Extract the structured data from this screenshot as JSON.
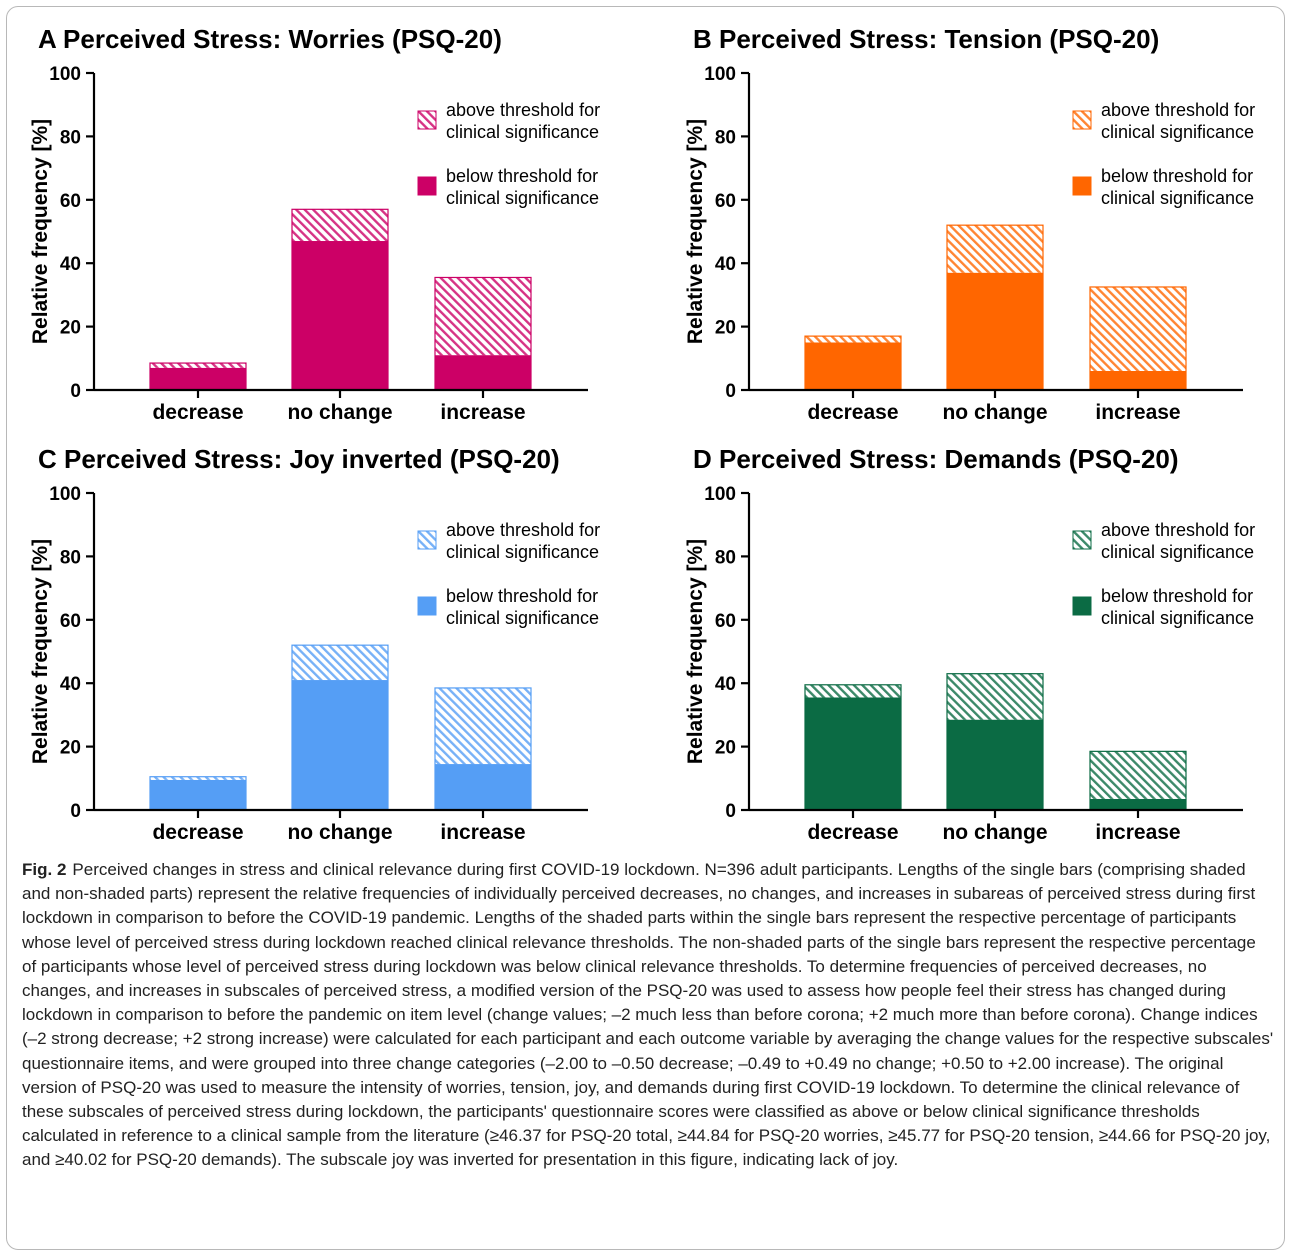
{
  "chart_data": [
    {
      "type": "bar",
      "title": "A Perceived Stress: Worries (PSQ-20)",
      "ylabel": "Relative frequency [%]",
      "ylim": [
        0,
        100
      ],
      "yticks": [
        "0",
        "20",
        "40",
        "60",
        "80",
        "100"
      ],
      "categories": [
        "decrease",
        "no change",
        "increase"
      ],
      "stacked": true,
      "color": "#cc0066",
      "series": [
        {
          "name": "below threshold for clinical significance",
          "values": [
            7,
            47,
            11
          ],
          "fill": "solid"
        },
        {
          "name": "above threshold for clinical significance",
          "values": [
            1.5,
            10,
            24.5
          ],
          "fill": "hatched"
        }
      ],
      "legend": {
        "position": "top-right",
        "items": [
          {
            "line1": "above threshold for",
            "line2": "clinical significance"
          },
          {
            "line1": "below threshold for",
            "line2": "clinical significance"
          }
        ]
      }
    },
    {
      "type": "bar",
      "title": "B Perceived Stress: Tension (PSQ-20)",
      "ylabel": "Relative frequency [%]",
      "ylim": [
        0,
        100
      ],
      "yticks": [
        "0",
        "20",
        "40",
        "60",
        "80",
        "100"
      ],
      "categories": [
        "decrease",
        "no change",
        "increase"
      ],
      "stacked": true,
      "color": "#ff6600",
      "series": [
        {
          "name": "below threshold for clinical significance",
          "values": [
            15,
            37,
            6
          ],
          "fill": "solid"
        },
        {
          "name": "above threshold for clinical significance",
          "values": [
            2,
            15,
            26.5
          ],
          "fill": "hatched"
        }
      ],
      "legend": {
        "position": "top-right",
        "items": [
          {
            "line1": "above threshold for",
            "line2": "clinical significance"
          },
          {
            "line1": "below threshold for",
            "line2": "clinical significance"
          }
        ]
      }
    },
    {
      "type": "bar",
      "title": "C Perceived Stress: Joy inverted (PSQ-20)",
      "ylabel": "Relative frequency [%]",
      "ylim": [
        0,
        100
      ],
      "yticks": [
        "0",
        "20",
        "40",
        "60",
        "80",
        "100"
      ],
      "categories": [
        "decrease",
        "no change",
        "increase"
      ],
      "stacked": true,
      "color": "#559ef5",
      "series": [
        {
          "name": "below threshold for clinical significance",
          "values": [
            9.5,
            41,
            14.5
          ],
          "fill": "solid"
        },
        {
          "name": "above threshold for clinical significance",
          "values": [
            1,
            11,
            24
          ],
          "fill": "hatched"
        }
      ],
      "legend": {
        "position": "top-right",
        "items": [
          {
            "line1": "above threshold for",
            "line2": "clinical significance"
          },
          {
            "line1": "below threshold for",
            "line2": "clinical significance"
          }
        ]
      }
    },
    {
      "type": "bar",
      "title": "D Perceived Stress: Demands (PSQ-20)",
      "ylabel": "Relative frequency [%]",
      "ylim": [
        0,
        100
      ],
      "yticks": [
        "0",
        "20",
        "40",
        "60",
        "80",
        "100"
      ],
      "categories": [
        "decrease",
        "no change",
        "increase"
      ],
      "stacked": true,
      "color": "#0b6b44",
      "series": [
        {
          "name": "below threshold for clinical significance",
          "values": [
            35.5,
            28.5,
            3.5
          ],
          "fill": "solid"
        },
        {
          "name": "above threshold for clinical significance",
          "values": [
            4,
            14.5,
            15
          ],
          "fill": "hatched"
        }
      ],
      "legend": {
        "position": "top-right",
        "items": [
          {
            "line1": "above threshold for",
            "line2": "clinical significance"
          },
          {
            "line1": "below threshold for",
            "line2": "clinical significance"
          }
        ]
      }
    }
  ],
  "caption": {
    "label": "Fig. 2",
    "text": "Perceived changes in stress and clinical relevance during first COVID-19 lockdown. N=396 adult participants. Lengths of the single bars (comprising shaded and non-shaded parts) represent the relative frequencies of individually perceived decreases, no changes, and increases in subareas of perceived stress during first lockdown in comparison to before the COVID-19 pandemic. Lengths of the shaded parts within the single bars represent the respective percentage of participants whose level of perceived stress during lockdown reached clinical relevance thresholds. The non-shaded parts of the single bars represent the respective percentage of participants whose level of perceived stress during lockdown was below clinical relevance thresholds. To determine frequencies of perceived decreases, no changes, and increases in subscales of perceived stress, a modified version of the PSQ-20 was used to assess how people feel their stress has changed during lockdown in comparison to before the pandemic on item level (change values; –2 much less than before corona; +2 much more than before corona). Change indices (–2 strong decrease; +2 strong increase) were calculated for each participant and each outcome variable by averaging the change values for the respective subscales' questionnaire items, and were grouped into three change categories (–2.00 to –0.50 decrease; –0.49 to +0.49 no change; +0.50 to +2.00 increase). The original version of PSQ-20 was used to measure the intensity of worries, tension, joy, and demands during first COVID-19 lockdown. To determine the clinical relevance of these subscales of perceived stress during lockdown, the participants' questionnaire scores were classified as above or below clinical significance thresholds calculated in reference to a clinical sample from the literature (≥46.37 for PSQ-20 total, ≥44.84 for PSQ-20 worries, ≥45.77 for PSQ-20 tension, ≥44.66 for PSQ-20 joy, and ≥40.02 for PSQ-20 demands). The subscale joy was inverted for presentation in this figure, indicating lack of joy."
  }
}
